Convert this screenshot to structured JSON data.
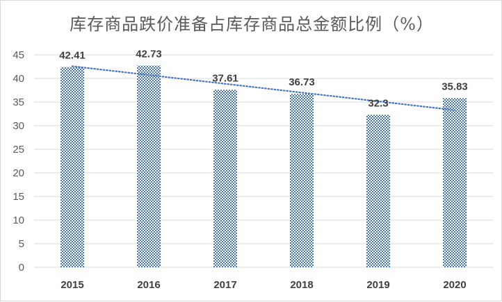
{
  "chart_data": {
    "type": "bar",
    "title": "库存商品跌价准备占库存商品总金额比例（%）",
    "categories": [
      "2015",
      "2016",
      "2017",
      "2018",
      "2019",
      "2020"
    ],
    "values": [
      42.41,
      42.73,
      37.61,
      36.73,
      32.3,
      35.83
    ],
    "value_labels": [
      "42.41",
      "42.73",
      "37.61",
      "36.73",
      "32.3",
      "35.83"
    ],
    "ylim": [
      0,
      45
    ],
    "yticks": [
      "0",
      "5",
      "10",
      "15",
      "20",
      "25",
      "30",
      "35",
      "40",
      "45"
    ],
    "grid": true,
    "trendline": {
      "type": "linear",
      "style": "dotted"
    },
    "colors": {
      "bar": "#4472c4",
      "trendline": "#4472c4",
      "grid": "#d9d9d9"
    },
    "legend": "none"
  }
}
